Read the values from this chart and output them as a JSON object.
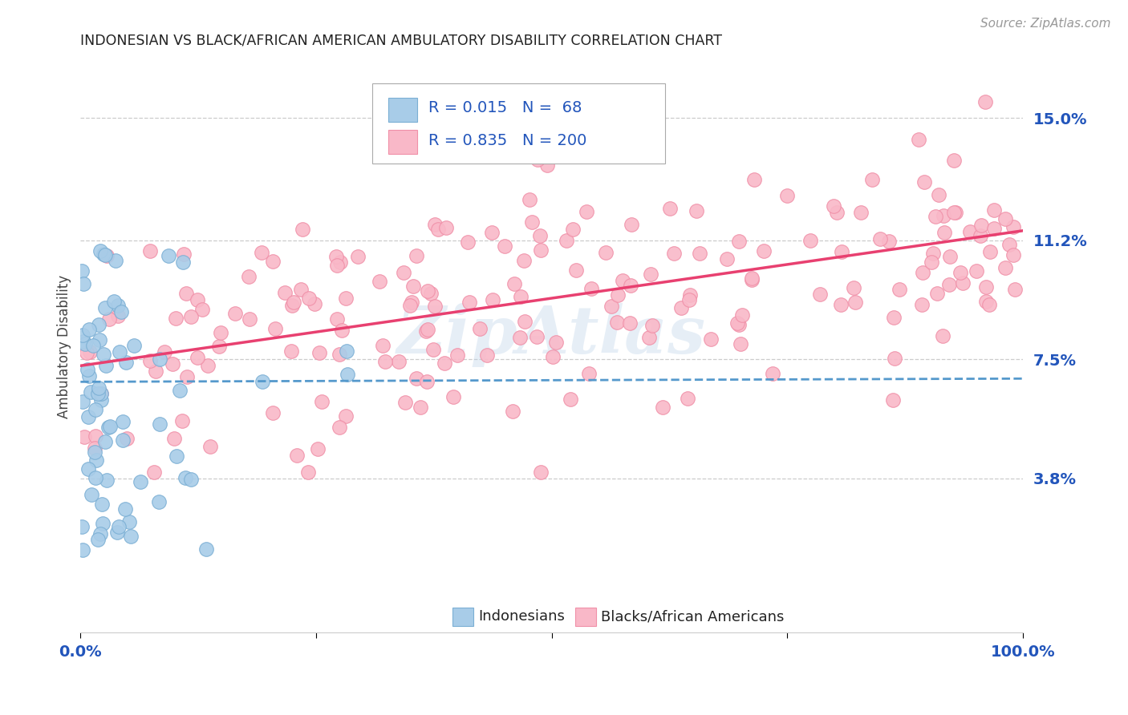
{
  "title": "INDONESIAN VS BLACK/AFRICAN AMERICAN AMBULATORY DISABILITY CORRELATION CHART",
  "source": "Source: ZipAtlas.com",
  "ylabel": "Ambulatory Disability",
  "xlim": [
    0.0,
    1.0
  ],
  "ylim": [
    -0.01,
    0.168
  ],
  "ytick_labels": [
    "3.8%",
    "7.5%",
    "11.2%",
    "15.0%"
  ],
  "ytick_values": [
    0.038,
    0.075,
    0.112,
    0.15
  ],
  "xtick_labels": [
    "0.0%",
    "",
    "",
    "",
    "100.0%"
  ],
  "xtick_values": [
    0.0,
    0.25,
    0.5,
    0.75,
    1.0
  ],
  "blue_color": "#a8cce8",
  "blue_edge_color": "#7bafd4",
  "pink_color": "#f9b8c8",
  "pink_edge_color": "#f090a8",
  "blue_line_color": "#5599cc",
  "pink_line_color": "#e84070",
  "label_color": "#2255bb",
  "R_blue": 0.015,
  "N_blue": 68,
  "R_pink": 0.835,
  "N_pink": 200,
  "blue_legend": "Indonesians",
  "pink_legend": "Blacks/African Americans",
  "watermark": "ZipAtlas",
  "background_color": "#ffffff",
  "grid_color": "#cccccc",
  "title_color": "#222222",
  "source_color": "#999999"
}
